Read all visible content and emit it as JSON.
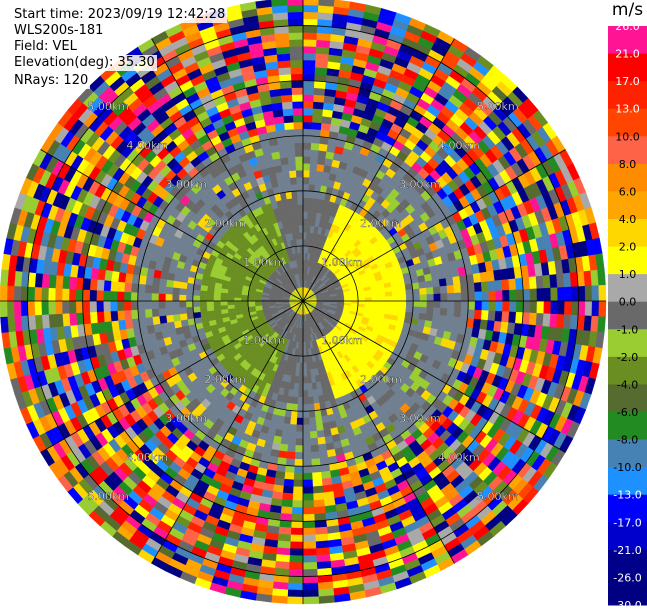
{
  "header": {
    "start_time": "Start time: 2023/09/19 12:42:28",
    "instrument": "WLS200s-181",
    "field": "Field: VEL",
    "elevation": "Elevation(deg): 35.30",
    "nrays": "NRays: 120"
  },
  "chart_data": {
    "type": "ppi",
    "field": "VEL",
    "units": "m/s",
    "nrays": 120,
    "max_range_km": 5.5,
    "range_rings_km": [
      1.0,
      2.0,
      3.0,
      4.0,
      5.0
    ],
    "ring_labels": [
      "1.00km",
      "2.00km",
      "3.00km",
      "4.00km",
      "5.00km"
    ],
    "spoke_azimuths_deg": [
      0,
      30,
      60,
      90,
      120,
      150,
      180,
      210,
      240,
      270,
      300,
      330
    ],
    "colorbar": {
      "label": "m/s",
      "ticks": [
        "26.0",
        "21.0",
        "17.0",
        "13.0",
        "10.0",
        "8.0",
        "6.0",
        "4.0",
        "2.0",
        "1.0",
        "0.0",
        "-1.0",
        "-2.0",
        "-4.0",
        "-6.0",
        "-8.0",
        "-10.0",
        "-13.0",
        "-17.0",
        "-21.0",
        "-26.0",
        "-30.0"
      ],
      "colors": [
        "#ff1493",
        "#ff0000",
        "#ff2200",
        "#ff4500",
        "#ff6347",
        "#ff8c00",
        "#ffa500",
        "#ffd700",
        "#ffff00",
        "#a9a9a9",
        "#696969",
        "#9acd32",
        "#6b8e23",
        "#556b2f",
        "#228b22",
        "#4682b4",
        "#1e90ff",
        "#0000ff",
        "#0000cd",
        "#00008b",
        "#000080"
      ]
    },
    "velocity_pattern": {
      "gray_annulus_km": [
        0.3,
        1.9
      ],
      "green_region_km": [
        0.8,
        1.9
      ],
      "yellow_region_km": [
        0.8,
        1.9
      ],
      "noise_beyond_km": 3.1
    }
  }
}
